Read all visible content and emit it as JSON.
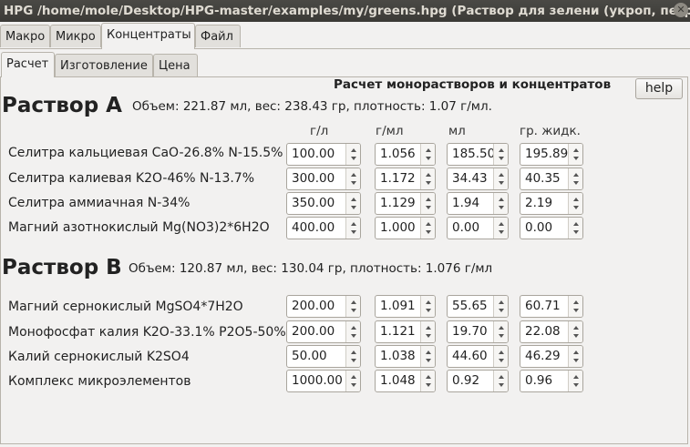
{
  "window": {
    "title": "HPG /home/mole/Desktop/HPG-master/examples/my/greens.hpg (Раствор для зелени (укроп, петру..."
  },
  "main_tabs": [
    "Макро",
    "Микро",
    "Концентраты",
    "Файл"
  ],
  "active_main_tab": "Концентраты",
  "sub_tabs": [
    "Расчет",
    "Изготовление",
    "Цена"
  ],
  "active_sub_tab": "Расчет",
  "heading": "Расчет монорастворов и концентратов",
  "help_label": "help",
  "columns": [
    "г/л",
    "г/мл",
    "мл",
    "гр. жидк."
  ],
  "solution_a": {
    "title": "Раствор A",
    "info": "Объем: 221.87 мл, вес: 238.43 гр, плотность: 1.07 г/мл.",
    "rows": [
      {
        "label": "Селитра кальциевая CaO-26.8% N-15.5%",
        "gl": "100.00",
        "gml": "1.056",
        "ml": "185.50",
        "gr": "195.89"
      },
      {
        "label": "Селитра калиевая K2O-46% N-13.7%",
        "gl": "300.00",
        "gml": "1.172",
        "ml": "34.43",
        "gr": "40.35"
      },
      {
        "label": "Селитра аммиачная N-34%",
        "gl": "350.00",
        "gml": "1.129",
        "ml": "1.94",
        "gr": "2.19"
      },
      {
        "label": "Магний азотнокислый Mg(NO3)2*6H2O",
        "gl": "400.00",
        "gml": "1.000",
        "ml": "0.00",
        "gr": "0.00"
      }
    ]
  },
  "solution_b": {
    "title": "Раствор B",
    "info": "Объем: 120.87 мл, вес: 130.04 гр, плотность: 1.076 г/мл",
    "rows": [
      {
        "label": "Магний сернокислый MgSO4*7H2O",
        "gl": "200.00",
        "gml": "1.091",
        "ml": "55.65",
        "gr": "60.71"
      },
      {
        "label": "Монофосфат калия K2O-33.1% P2O5-50%",
        "gl": "200.00",
        "gml": "1.121",
        "ml": "19.70",
        "gr": "22.08"
      },
      {
        "label": "Калий сернокислый K2SO4",
        "gl": "50.00",
        "gml": "1.038",
        "ml": "44.60",
        "gr": "46.29"
      },
      {
        "label": "Комплекс микроэлементов",
        "gl": "1000.00",
        "gml": "1.048",
        "ml": "0.92",
        "gr": "0.96"
      }
    ]
  }
}
